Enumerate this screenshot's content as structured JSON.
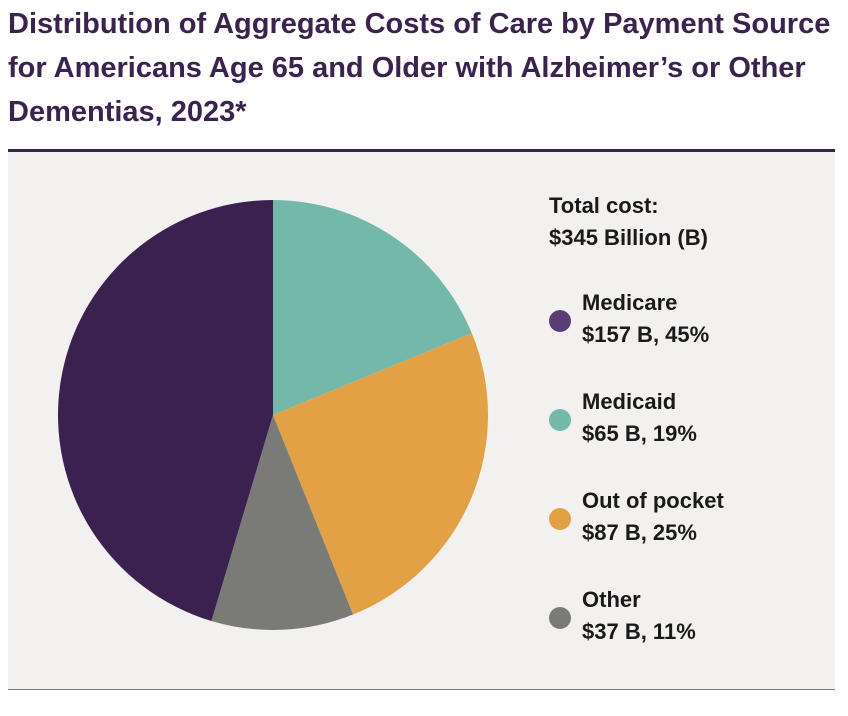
{
  "title": "Distribution of Aggregate Costs of Care by Payment Source for Americans Age 65 and Older with Alzheimer’s or Other Dementias, 2023*",
  "total": {
    "line1": "Total cost:",
    "line2": "$345 Billion (B)"
  },
  "colors": {
    "title": "#3b2350",
    "panel_background": "#f2f1ef"
  },
  "chart_data": {
    "type": "pie",
    "title": "Distribution of Aggregate Costs of Care by Payment Source for Americans Age 65 and Older with Alzheimer’s or Other Dementias, 2023*",
    "total_billion": 345,
    "start_angle": "12 o'clock",
    "direction": "clockwise",
    "legend_position": "right",
    "slices": [
      {
        "name": "Medicaid",
        "value": 65,
        "percent": 19,
        "label": "$65 B, 19%",
        "color": "#74b8aa"
      },
      {
        "name": "Out of pocket",
        "value": 87,
        "percent": 25,
        "label": "$87 B, 25%",
        "color": "#e3a146"
      },
      {
        "name": "Other",
        "value": 37,
        "percent": 11,
        "label": "$37 B, 11%",
        "color": "#7a7a77"
      },
      {
        "name": "Medicare",
        "value": 157,
        "percent": 45,
        "label": "$157 B, 45%",
        "color": "#3b2150"
      }
    ]
  },
  "legend": [
    {
      "name": "Medicare",
      "detail": "$157 B, 45%",
      "color": "#5a3e72"
    },
    {
      "name": "Medicaid",
      "detail": "$65 B, 19%",
      "color": "#74b8aa"
    },
    {
      "name": "Out of pocket",
      "detail": "$87 B, 25%",
      "color": "#e3a146"
    },
    {
      "name": "Other",
      "detail": "$37 B, 11%",
      "color": "#7a7a77"
    }
  ]
}
